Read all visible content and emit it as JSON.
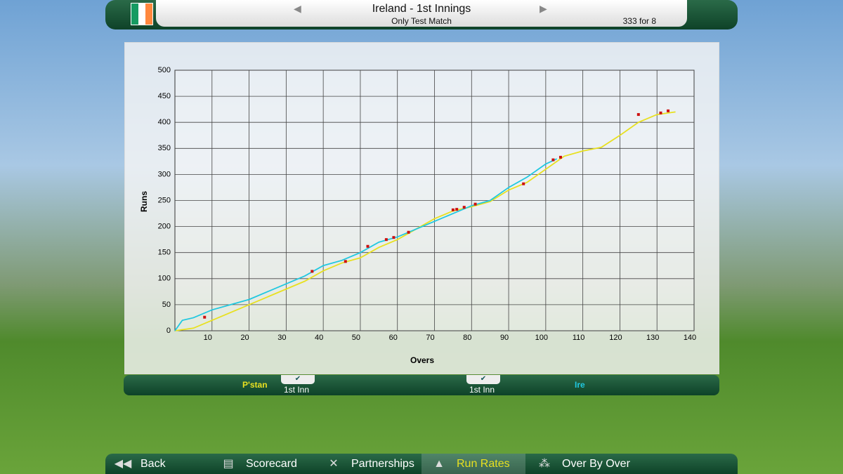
{
  "header": {
    "title": "Ireland - 1st Innings",
    "subtitle": "Only Test Match",
    "score": "333 for 8"
  },
  "chart_data": {
    "type": "line",
    "ylabel": "Runs",
    "xlabel": "Overs",
    "xlim": [
      0,
      140
    ],
    "xticks": [
      10,
      20,
      30,
      40,
      50,
      60,
      70,
      80,
      90,
      100,
      110,
      120,
      130,
      140
    ],
    "ylim": [
      0,
      500
    ],
    "yticks": [
      0,
      50,
      100,
      150,
      200,
      250,
      300,
      350,
      400,
      450,
      500
    ],
    "grid": true,
    "series": [
      {
        "name": "P'stan",
        "color": "#e8e020",
        "x": [
          0,
          5,
          10,
          15,
          20,
          25,
          30,
          35,
          40,
          45,
          50,
          55,
          60,
          65,
          70,
          75,
          80,
          85,
          90,
          95,
          100,
          105,
          110,
          115,
          120,
          125,
          130,
          135
        ],
        "values": [
          0,
          5,
          20,
          35,
          50,
          65,
          80,
          95,
          115,
          130,
          140,
          160,
          175,
          195,
          215,
          230,
          238,
          248,
          270,
          285,
          310,
          335,
          345,
          352,
          375,
          400,
          415,
          420
        ]
      },
      {
        "name": "Ire",
        "color": "#20c8e0",
        "x": [
          0,
          2,
          5,
          10,
          15,
          20,
          25,
          30,
          35,
          40,
          45,
          50,
          55,
          60,
          65,
          70,
          75,
          80,
          85,
          90,
          95,
          100,
          103
        ],
        "values": [
          0,
          20,
          25,
          40,
          50,
          60,
          75,
          90,
          105,
          125,
          135,
          150,
          170,
          180,
          195,
          210,
          225,
          240,
          250,
          275,
          295,
          320,
          330
        ]
      }
    ],
    "wickets": {
      "color": "#cc1010",
      "x": [
        8,
        37,
        46,
        52,
        57,
        59,
        63,
        75,
        76,
        78,
        81,
        94,
        102,
        104,
        125,
        131,
        133
      ],
      "values": [
        26,
        114,
        133,
        162,
        175,
        179,
        189,
        232,
        233,
        237,
        243,
        282,
        328,
        333,
        415,
        418,
        422
      ]
    }
  },
  "toggles": [
    {
      "team": "P'stan",
      "innings": "1st Inn"
    },
    {
      "team": "Ire",
      "innings": "1st Inn"
    }
  ],
  "nav": [
    {
      "label": "Back"
    },
    {
      "label": "Scorecard"
    },
    {
      "label": "Partnerships"
    },
    {
      "label": "Run Rates",
      "active": true
    },
    {
      "label": "Over By Over"
    }
  ]
}
